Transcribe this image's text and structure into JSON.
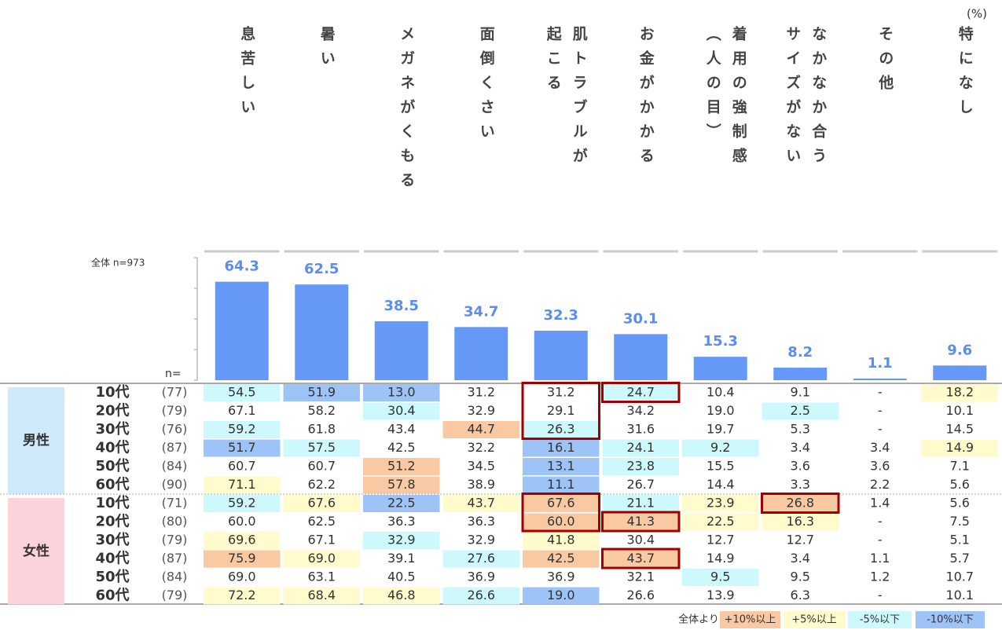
{
  "chart_data": {
    "type": "bar",
    "unit_label": "(%)",
    "total_label": "全体 n=973",
    "n_label": "n=",
    "categories": [
      "息苦しい",
      "暑い",
      "メガネがくもる",
      "面倒くさい",
      "肌トラブルが起こる",
      "お金がかかる",
      "着用の強制感（人の目）",
      "なかなか合うサイズがない",
      "その他",
      "特になし"
    ],
    "values": [
      64.3,
      62.5,
      38.5,
      34.7,
      32.3,
      30.1,
      15.3,
      8.2,
      1.1,
      9.6
    ],
    "color": "#6699f7",
    "label_color": "#5b8def",
    "ylim": [
      0,
      80
    ],
    "yticks": [
      0,
      20,
      40,
      60,
      80
    ]
  },
  "table": {
    "groups": [
      {
        "name": "男性",
        "color": "#cde9fa",
        "rows": [
          {
            "age": "10代",
            "n": "(77)",
            "cells": [
              "54.5",
              "51.9",
              "13.0",
              "31.2",
              "31.2",
              "24.7",
              "10.4",
              "9.1",
              "-",
              "18.2"
            ]
          },
          {
            "age": "20代",
            "n": "(79)",
            "cells": [
              "67.1",
              "58.2",
              "30.4",
              "32.9",
              "29.1",
              "34.2",
              "19.0",
              "2.5",
              "-",
              "10.1"
            ]
          },
          {
            "age": "30代",
            "n": "(76)",
            "cells": [
              "59.2",
              "61.8",
              "43.4",
              "44.7",
              "26.3",
              "31.6",
              "19.7",
              "5.3",
              "-",
              "14.5"
            ]
          },
          {
            "age": "40代",
            "n": "(87)",
            "cells": [
              "51.7",
              "57.5",
              "42.5",
              "32.2",
              "16.1",
              "24.1",
              "9.2",
              "3.4",
              "3.4",
              "14.9"
            ]
          },
          {
            "age": "50代",
            "n": "(84)",
            "cells": [
              "60.7",
              "60.7",
              "51.2",
              "34.5",
              "13.1",
              "23.8",
              "15.5",
              "3.6",
              "3.6",
              "7.1"
            ]
          },
          {
            "age": "60代",
            "n": "(90)",
            "cells": [
              "71.1",
              "62.2",
              "57.8",
              "38.9",
              "11.1",
              "26.7",
              "14.4",
              "3.3",
              "2.2",
              "5.6"
            ]
          }
        ]
      },
      {
        "name": "女性",
        "color": "#fcd3da",
        "rows": [
          {
            "age": "10代",
            "n": "(71)",
            "cells": [
              "59.2",
              "67.6",
              "22.5",
              "43.7",
              "67.6",
              "21.1",
              "23.9",
              "26.8",
              "1.4",
              "5.6"
            ]
          },
          {
            "age": "20代",
            "n": "(80)",
            "cells": [
              "60.0",
              "62.5",
              "36.3",
              "36.3",
              "60.0",
              "41.3",
              "22.5",
              "16.3",
              "-",
              "7.5"
            ]
          },
          {
            "age": "30代",
            "n": "(79)",
            "cells": [
              "69.6",
              "67.1",
              "32.9",
              "32.9",
              "41.8",
              "30.4",
              "12.7",
              "12.7",
              "-",
              "5.1"
            ]
          },
          {
            "age": "40代",
            "n": "(87)",
            "cells": [
              "75.9",
              "69.0",
              "39.1",
              "27.6",
              "42.5",
              "43.7",
              "14.9",
              "3.4",
              "1.1",
              "5.7"
            ]
          },
          {
            "age": "50代",
            "n": "(84)",
            "cells": [
              "69.0",
              "63.1",
              "40.5",
              "36.9",
              "36.9",
              "32.1",
              "9.5",
              "9.5",
              "1.2",
              "10.7"
            ]
          },
          {
            "age": "60代",
            "n": "(79)",
            "cells": [
              "72.2",
              "68.4",
              "46.8",
              "26.6",
              "19.0",
              "26.6",
              "13.9",
              "6.3",
              "-",
              "10.1"
            ]
          }
        ]
      }
    ]
  },
  "legend": {
    "prefix": "全体より",
    "items": [
      {
        "label": "+10%以上",
        "threshold": 10,
        "color": "#f9c9a3"
      },
      {
        "label": "+5%以上",
        "threshold": 5,
        "color": "#fffbcd"
      },
      {
        "label": "-5%以下",
        "threshold": -5,
        "color": "#cdf9fc"
      },
      {
        "label": "-10%以下",
        "threshold": -10,
        "color": "#9ec4f7"
      }
    ]
  }
}
